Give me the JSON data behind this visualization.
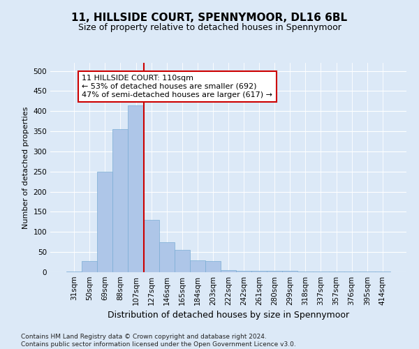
{
  "title1": "11, HILLSIDE COURT, SPENNYMOOR, DL16 6BL",
  "title2": "Size of property relative to detached houses in Spennymoor",
  "xlabel": "Distribution of detached houses by size in Spennymoor",
  "ylabel": "Number of detached properties",
  "categories": [
    "31sqm",
    "50sqm",
    "69sqm",
    "88sqm",
    "107sqm",
    "127sqm",
    "146sqm",
    "165sqm",
    "184sqm",
    "203sqm",
    "222sqm",
    "242sqm",
    "261sqm",
    "280sqm",
    "299sqm",
    "318sqm",
    "337sqm",
    "357sqm",
    "376sqm",
    "395sqm",
    "414sqm"
  ],
  "values": [
    2,
    28,
    250,
    355,
    415,
    130,
    75,
    55,
    30,
    28,
    5,
    3,
    3,
    3,
    3,
    1,
    1,
    1,
    1,
    1,
    1
  ],
  "bar_color": "#aec6e8",
  "bar_edge_color": "#7aadd4",
  "vline_x": 4.5,
  "vline_color": "#cc0000",
  "annotation_text": "11 HILLSIDE COURT: 110sqm\n← 53% of detached houses are smaller (692)\n47% of semi-detached houses are larger (617) →",
  "annotation_box_color": "#ffffff",
  "annotation_box_edge": "#cc0000",
  "background_color": "#dce9f7",
  "plot_bg_color": "#dce9f7",
  "footer_text": "Contains HM Land Registry data © Crown copyright and database right 2024.\nContains public sector information licensed under the Open Government Licence v3.0.",
  "ylim": [
    0,
    520
  ],
  "yticks": [
    0,
    50,
    100,
    150,
    200,
    250,
    300,
    350,
    400,
    450,
    500
  ],
  "title1_fontsize": 11,
  "title2_fontsize": 9,
  "xlabel_fontsize": 9,
  "ylabel_fontsize": 8,
  "tick_fontsize": 7.5,
  "annotation_fontsize": 8,
  "footer_fontsize": 6.5
}
